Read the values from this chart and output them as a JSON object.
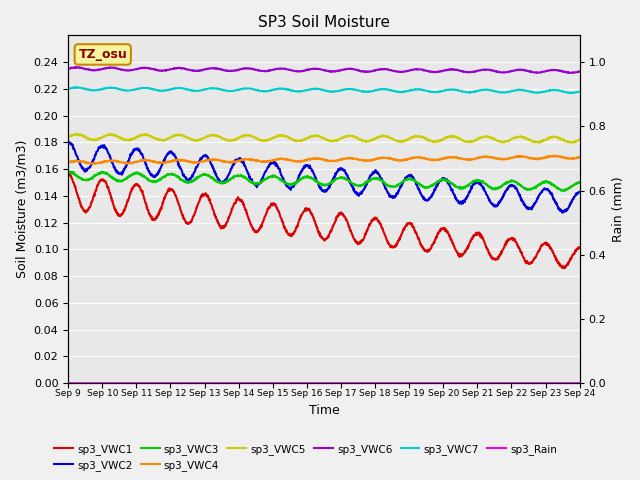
{
  "title": "SP3 Soil Moisture",
  "xlabel": "Time",
  "ylabel_left": "Soil Moisture (m3/m3)",
  "ylabel_right": "Rain (mm)",
  "ylim_left": [
    0.0,
    0.26
  ],
  "ylim_right": [
    0.0,
    1.0833
  ],
  "bg_color": "#e8e8e8",
  "fig_color": "#f0f0f0",
  "tz_label": "TZ_osu",
  "xtick_labels": [
    "Sep 9",
    "Sep 10",
    "Sep 11",
    "Sep 12",
    "Sep 13",
    "Sep 14",
    "Sep 15",
    "Sep 16",
    "Sep 17",
    "Sep 18",
    "Sep 19",
    "Sep 20",
    "Sep 21",
    "Sep 22",
    "Sep 23",
    "Sep 24"
  ],
  "legend_entries": [
    {
      "label": "sp3_VWC1",
      "color": "#dd0000",
      "lw": 1.5
    },
    {
      "label": "sp3_VWC2",
      "color": "#0000dd",
      "lw": 1.5
    },
    {
      "label": "sp3_VWC3",
      "color": "#00cc00",
      "lw": 1.5
    },
    {
      "label": "sp3_VWC4",
      "color": "#ff8800",
      "lw": 1.5
    },
    {
      "label": "sp3_VWC5",
      "color": "#cccc00",
      "lw": 1.5
    },
    {
      "label": "sp3_VWC6",
      "color": "#9900cc",
      "lw": 1.5
    },
    {
      "label": "sp3_VWC7",
      "color": "#00cccc",
      "lw": 1.5
    },
    {
      "label": "sp3_Rain",
      "color": "#ee00ee",
      "lw": 1.5
    }
  ],
  "yticks_left": [
    0.0,
    0.02,
    0.04,
    0.06,
    0.08,
    0.1,
    0.12,
    0.14,
    0.16,
    0.18,
    0.2,
    0.22,
    0.24
  ],
  "yticks_right": [
    0.0,
    0.2,
    0.4,
    0.6,
    0.8,
    1.0
  ],
  "n_points": 1440,
  "seed": 42
}
